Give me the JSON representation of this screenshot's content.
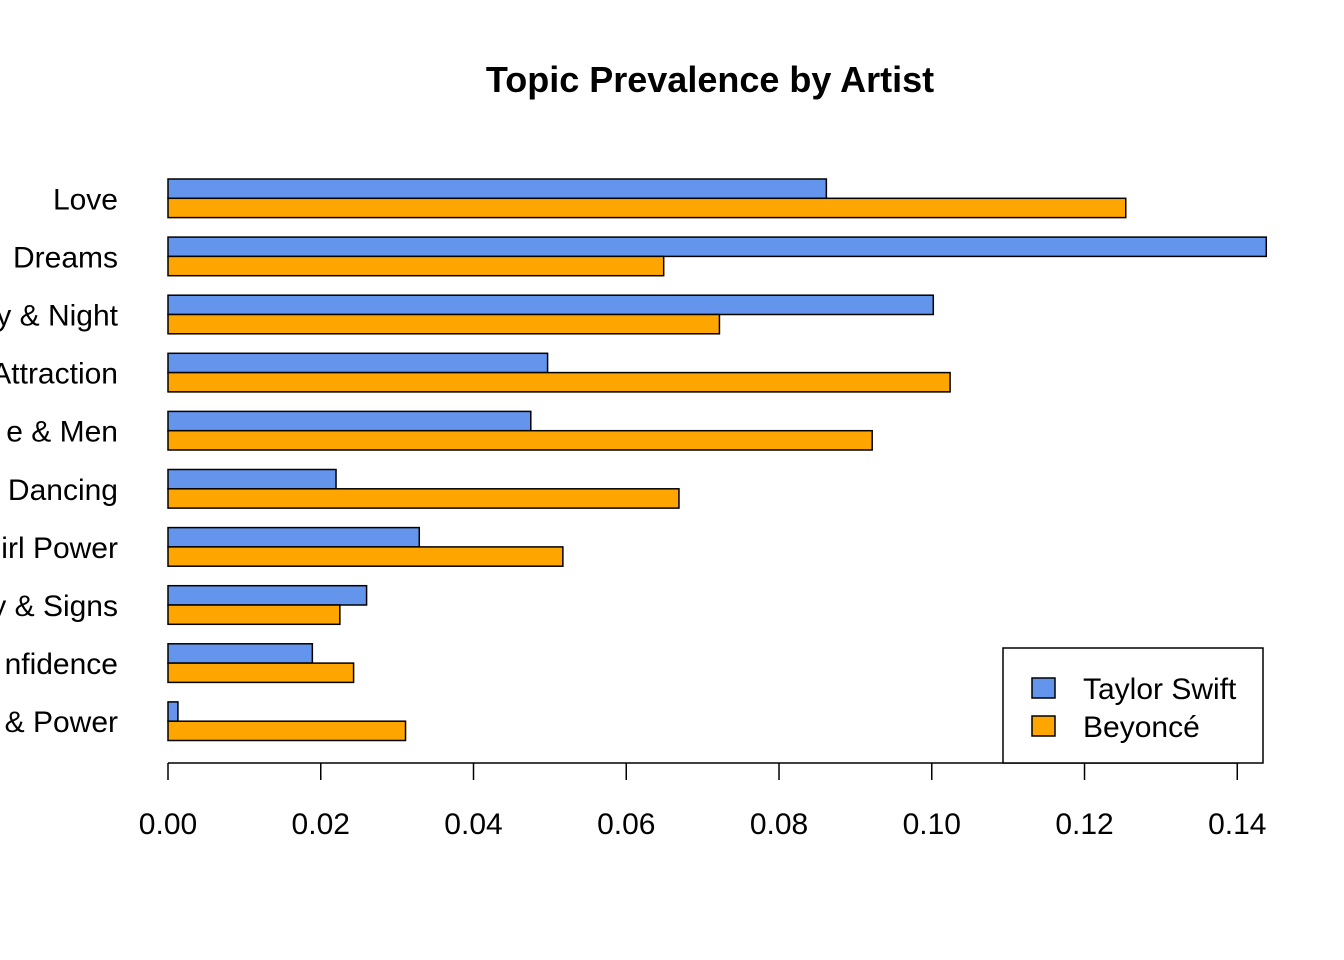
{
  "chart_data": {
    "type": "bar",
    "orientation": "horizontal",
    "title": "Topic Prevalence by Artist",
    "xlabel": "",
    "ylabel": "",
    "xlim": [
      0,
      0.1435
    ],
    "xticks": [
      0.0,
      0.02,
      0.04,
      0.06,
      0.08,
      0.1,
      0.12,
      0.14
    ],
    "xtick_labels": [
      "0.00",
      "0.02",
      "0.04",
      "0.06",
      "0.08",
      "0.10",
      "0.12",
      "0.14"
    ],
    "categories": [
      "Love",
      "Dreams",
      "y & Night",
      "Attraction",
      "e & Men",
      "Dancing",
      "irl Power",
      "y & Signs",
      "nfidence",
      "& Power"
    ],
    "series": [
      {
        "name": "Taylor Swift",
        "color": "#6495ED",
        "values": [
          0.0862,
          0.1438,
          0.1002,
          0.0497,
          0.0475,
          0.022,
          0.0329,
          0.026,
          0.0189,
          0.0013
        ]
      },
      {
        "name": "Beyoncé",
        "color": "#FFA500",
        "values": [
          0.1254,
          0.0649,
          0.0722,
          0.1024,
          0.0922,
          0.0669,
          0.0517,
          0.0225,
          0.0243,
          0.0311
        ]
      }
    ],
    "legend": {
      "position": "bottom-right",
      "entries": [
        "Taylor Swift",
        "Beyoncé"
      ]
    },
    "grid": false
  }
}
